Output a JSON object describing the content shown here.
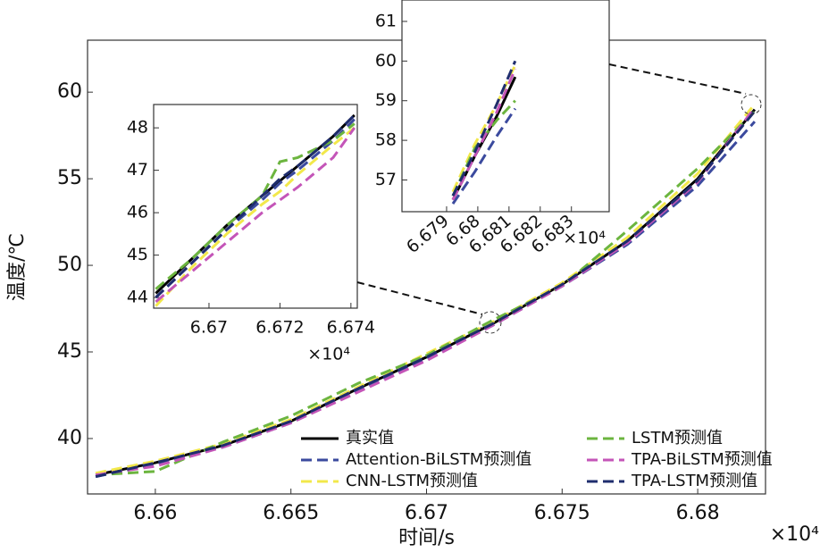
{
  "chart_data": [
    {
      "type": "line",
      "x_label": "时间/s",
      "y_label": "温度/℃",
      "x_multiplier": "×10⁴",
      "legend": "lower right",
      "x": [
        6.6578,
        6.66,
        6.6625,
        6.665,
        6.6675,
        6.67,
        6.6724,
        6.675,
        6.6774,
        6.68,
        6.6821
      ],
      "xlim": [
        6.6575,
        6.6825
      ],
      "xticks": [
        6.66,
        6.665,
        6.67,
        6.675,
        6.68
      ],
      "ylim": [
        36.8,
        63
      ],
      "yticks": [
        40,
        45,
        50,
        55,
        60
      ],
      "series": [
        {
          "name": "真实值",
          "color": "#000000",
          "linestyle": "solid",
          "values": [
            37.9,
            38.6,
            39.6,
            41.0,
            42.9,
            44.7,
            46.6,
            48.9,
            51.4,
            55.0,
            59.0
          ]
        },
        {
          "name": "Attention-BiLSTM预测值",
          "color": "#3b4a9e",
          "linestyle": "dashed",
          "values": [
            37.8,
            38.5,
            39.5,
            40.9,
            42.8,
            44.6,
            46.5,
            48.8,
            51.2,
            54.6,
            58.3
          ]
        },
        {
          "name": "CNN-LSTM预测值",
          "color": "#f2e84b",
          "linestyle": "dashed",
          "values": [
            38.0,
            38.7,
            39.7,
            41.1,
            43.0,
            44.9,
            46.7,
            49.0,
            51.6,
            55.3,
            59.3
          ]
        },
        {
          "name": "LSTM预测值",
          "color": "#6cb53f",
          "linestyle": "dashed",
          "values": [
            37.9,
            38.1,
            39.8,
            41.3,
            43.2,
            44.8,
            46.8,
            48.8,
            52.0,
            55.6,
            58.9
          ]
        },
        {
          "name": "TPA-BiLSTM预测值",
          "color": "#c455b8",
          "linestyle": "dashed",
          "values": [
            37.9,
            38.4,
            39.5,
            40.9,
            42.7,
            44.5,
            46.5,
            48.8,
            51.3,
            54.8,
            59.1
          ]
        },
        {
          "name": "TPA-LSTM预测值",
          "color": "#1f2d6e",
          "linestyle": "dashed",
          "values": [
            37.8,
            38.6,
            39.6,
            41.0,
            42.9,
            44.7,
            46.6,
            48.9,
            51.4,
            54.9,
            58.9
          ]
        }
      ]
    },
    {
      "type": "line",
      "x_multiplier": "×10⁴",
      "x": [
        6.6685,
        6.6695,
        6.6705,
        6.6715,
        6.672,
        6.6725,
        6.6735,
        6.6741
      ],
      "xlim": [
        6.66844,
        6.67418
      ],
      "xticks": [
        6.67,
        6.672,
        6.674
      ],
      "ylim": [
        43.75,
        48.55
      ],
      "yticks": [
        44,
        45,
        46,
        47,
        48
      ],
      "series": [
        {
          "color": "#000000",
          "linestyle": "solid",
          "values": [
            44.1,
            44.9,
            45.7,
            46.4,
            46.75,
            47.1,
            47.8,
            48.3
          ]
        },
        {
          "color": "#3b4a9e",
          "linestyle": "dashed",
          "values": [
            44.0,
            44.8,
            45.6,
            46.3,
            46.7,
            47.0,
            47.7,
            48.2
          ]
        },
        {
          "color": "#f2e84b",
          "linestyle": "dashed",
          "values": [
            43.8,
            44.7,
            45.5,
            46.2,
            46.5,
            46.9,
            47.6,
            48.0
          ]
        },
        {
          "color": "#6cb53f",
          "linestyle": "dashed",
          "values": [
            44.2,
            44.9,
            45.7,
            46.4,
            47.2,
            47.3,
            47.7,
            48.1
          ]
        },
        {
          "color": "#c455b8",
          "linestyle": "dashed",
          "values": [
            43.9,
            44.6,
            45.3,
            46.0,
            46.3,
            46.6,
            47.3,
            48.0
          ]
        },
        {
          "color": "#1f2d6e",
          "linestyle": "dashed",
          "values": [
            44.0,
            44.8,
            45.6,
            46.4,
            46.8,
            47.1,
            47.8,
            48.3
          ]
        }
      ]
    },
    {
      "type": "line",
      "x_multiplier": "×10⁴",
      "x": [
        6.6792,
        6.6799,
        6.6806,
        6.6812
      ],
      "xlim": [
        6.67757,
        6.68421
      ],
      "xticks": [
        6.679,
        6.68,
        6.681,
        6.682,
        6.683
      ],
      "ylim": [
        56.2,
        61.54
      ],
      "yticks": [
        57,
        58,
        59,
        60,
        61
      ],
      "series": [
        {
          "color": "#000000",
          "linestyle": "solid",
          "values": [
            56.5,
            57.6,
            58.6,
            59.6
          ]
        },
        {
          "color": "#3b4a9e",
          "linestyle": "dashed",
          "values": [
            56.4,
            57.2,
            58.1,
            58.8
          ]
        },
        {
          "color": "#f2e84b",
          "linestyle": "dashed",
          "values": [
            56.7,
            57.9,
            58.9,
            59.9
          ]
        },
        {
          "color": "#6cb53f",
          "linestyle": "dashed",
          "values": [
            56.6,
            57.8,
            58.5,
            59.0
          ]
        },
        {
          "color": "#c455b8",
          "linestyle": "dashed",
          "values": [
            56.5,
            57.6,
            58.7,
            59.8
          ]
        },
        {
          "color": "#1f2d6e",
          "linestyle": "dashed",
          "values": [
            56.6,
            57.7,
            58.9,
            60.0
          ]
        }
      ]
    }
  ]
}
